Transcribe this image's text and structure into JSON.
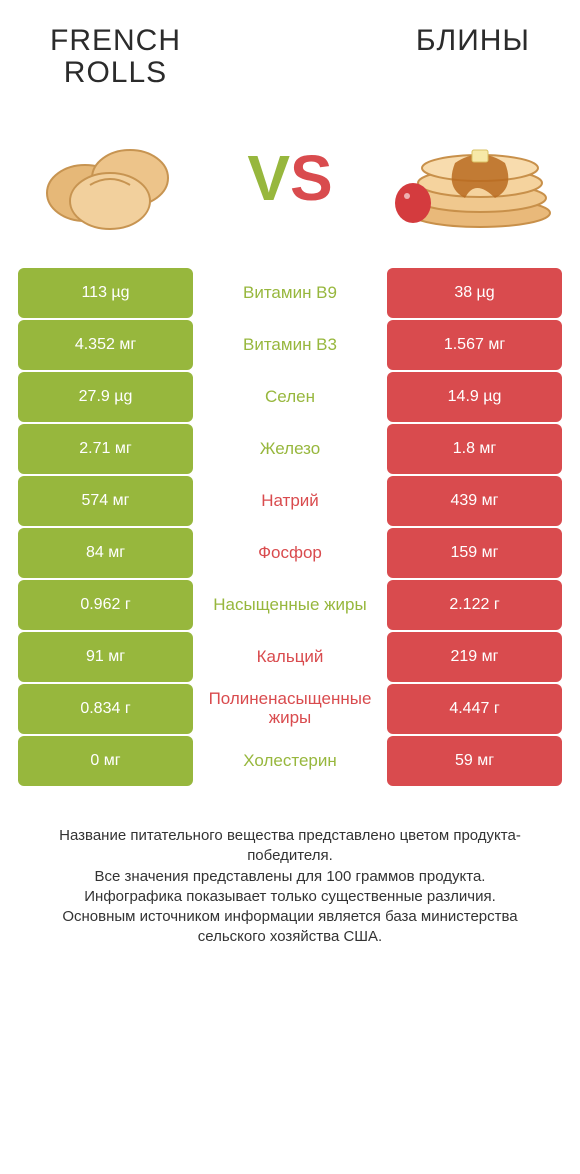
{
  "colors": {
    "green": "#97b73d",
    "red": "#d94b4e",
    "text_dark": "#2b2b2b",
    "footer": "#333333"
  },
  "typography": {
    "title_fontsize": 30,
    "title_weight": 400,
    "title_color": "#2b2b2b",
    "vs_fontsize": 64,
    "cell_fontsize": 16,
    "mid_fontsize": 17,
    "footer_fontsize": 15
  },
  "header": {
    "left_title_line1": "FRENCH",
    "left_title_line2": "ROLLS",
    "right_title": "БЛИНЫ",
    "vs_left": "V",
    "vs_right": "S"
  },
  "rows": [
    {
      "left": "113 µg",
      "mid": "Витамин B9",
      "right": "38 µg",
      "winner": "left"
    },
    {
      "left": "4.352 мг",
      "mid": "Витамин B3",
      "right": "1.567 мг",
      "winner": "left"
    },
    {
      "left": "27.9 µg",
      "mid": "Селен",
      "right": "14.9 µg",
      "winner": "left"
    },
    {
      "left": "2.71 мг",
      "mid": "Железо",
      "right": "1.8 мг",
      "winner": "left"
    },
    {
      "left": "574 мг",
      "mid": "Натрий",
      "right": "439 мг",
      "winner": "right"
    },
    {
      "left": "84 мг",
      "mid": "Фосфор",
      "right": "159 мг",
      "winner": "right"
    },
    {
      "left": "0.962 г",
      "mid": "Насыщенные жиры",
      "right": "2.122 г",
      "winner": "left"
    },
    {
      "left": "91 мг",
      "mid": "Кальций",
      "right": "219 мг",
      "winner": "right"
    },
    {
      "left": "0.834 г",
      "mid": "Полиненасыщенные жиры",
      "right": "4.447 г",
      "winner": "right"
    },
    {
      "left": "0 мг",
      "mid": "Холестерин",
      "right": "59 мг",
      "winner": "left"
    }
  ],
  "footer": {
    "line1": "Название питательного вещества представлено цветом продукта-победителя.",
    "line2": "Все значения представлены для 100 граммов продукта.",
    "line3": "Инфографика показывает только существенные различия.",
    "line4": "Основным источником информации является база министерства сельского хозяйства США."
  }
}
